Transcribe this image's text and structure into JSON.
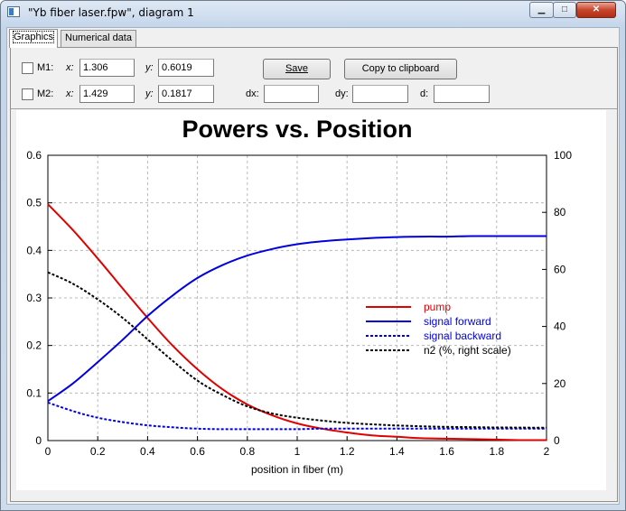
{
  "window": {
    "title": "\"Yb fiber laser.fpw\", diagram 1",
    "minimize_icon": "minimize-icon",
    "maximize_icon": "maximize-icon",
    "close_icon": "close-icon"
  },
  "tabs": [
    {
      "label": "Graphics",
      "active": true
    },
    {
      "label": "Numerical data",
      "active": false
    }
  ],
  "markers": {
    "m1": {
      "label": "M1:",
      "checked": false,
      "x_label": "x:",
      "x_value": "1.306",
      "y_label": "y:",
      "y_value": "0.6019"
    },
    "m2": {
      "label": "M2:",
      "checked": false,
      "x_label": "x:",
      "x_value": "1.429",
      "y_label": "y:",
      "y_value": "0.1817"
    }
  },
  "buttons": {
    "save": "Save",
    "copy": "Copy to clipboard"
  },
  "deltas": {
    "dx_label": "dx:",
    "dx_value": "",
    "dy_label": "dy:",
    "dy_value": "",
    "d_label": "d:",
    "d_value": ""
  },
  "chart_data": {
    "type": "line",
    "title": "Powers vs. Position",
    "xlabel": "position in fiber (m)",
    "ylabel": "",
    "y2label": "",
    "xlim": [
      0,
      2
    ],
    "ylim": [
      0,
      0.6
    ],
    "y2lim": [
      0,
      100
    ],
    "x_ticks": [
      "0",
      "0.2",
      "0.4",
      "0.6",
      "0.8",
      "1",
      "1.2",
      "1.4",
      "1.6",
      "1.8",
      "2"
    ],
    "y_ticks": [
      "0",
      "0.1",
      "0.2",
      "0.3",
      "0.4",
      "0.5",
      "0.6"
    ],
    "y2_ticks": [
      "0",
      "20",
      "40",
      "60",
      "80",
      "100"
    ],
    "grid": true,
    "legend_position": "center-right",
    "x": [
      0,
      0.1,
      0.2,
      0.3,
      0.4,
      0.5,
      0.6,
      0.7,
      0.8,
      0.9,
      1.0,
      1.1,
      1.2,
      1.3,
      1.4,
      1.5,
      1.6,
      1.7,
      1.8,
      1.9,
      2.0
    ],
    "series": [
      {
        "name": "pump",
        "color": "#e00000",
        "dash": false,
        "axis": "left",
        "values": [
          0.497,
          0.443,
          0.383,
          0.32,
          0.258,
          0.2,
          0.15,
          0.108,
          0.076,
          0.053,
          0.036,
          0.025,
          0.017,
          0.011,
          0.008,
          0.005,
          0.004,
          0.003,
          0.002,
          0.001,
          0.001
        ]
      },
      {
        "name": "signal forward",
        "color": "#0000e0",
        "dash": false,
        "axis": "left",
        "values": [
          0.083,
          0.12,
          0.165,
          0.212,
          0.262,
          0.305,
          0.342,
          0.369,
          0.389,
          0.403,
          0.413,
          0.419,
          0.423,
          0.426,
          0.428,
          0.429,
          0.429,
          0.43,
          0.43,
          0.43,
          0.43
        ]
      },
      {
        "name": "signal backward",
        "color": "#0000e0",
        "dash": true,
        "axis": "left",
        "values": [
          0.08,
          0.062,
          0.048,
          0.039,
          0.032,
          0.028,
          0.025,
          0.024,
          0.024,
          0.024,
          0.024,
          0.025,
          0.025,
          0.025,
          0.025,
          0.025,
          0.025,
          0.025,
          0.025,
          0.025,
          0.025
        ]
      },
      {
        "name": "n2 (%, right scale)",
        "color": "#000000",
        "dash": true,
        "axis": "right",
        "values": [
          59,
          55,
          49.5,
          43,
          35.5,
          28,
          21,
          16,
          12,
          9.5,
          8,
          7,
          6.2,
          5.7,
          5.3,
          5.0,
          4.8,
          4.7,
          4.6,
          4.55,
          4.5
        ]
      }
    ]
  }
}
